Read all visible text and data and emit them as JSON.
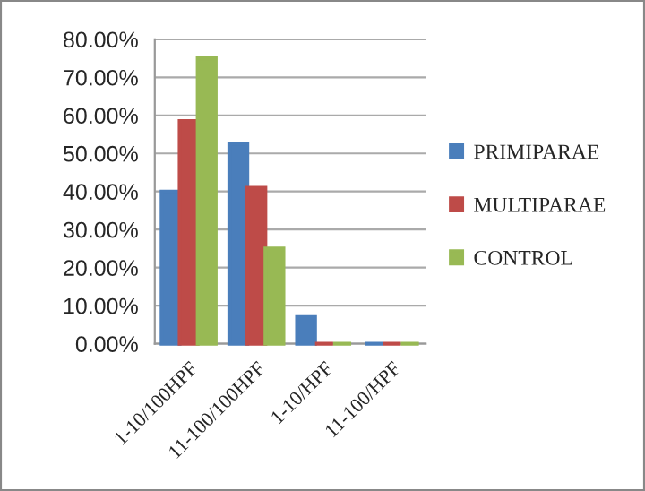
{
  "chart_data": {
    "type": "bar",
    "categories": [
      "1-10/100HPF",
      "11-100/100HPF",
      "1-10/HPF",
      "11-100/HPF"
    ],
    "series": [
      {
        "name": "PRIMIPARAE",
        "color": "#4a7ebb",
        "values": [
          40,
          52.5,
          7,
          0
        ]
      },
      {
        "name": "MULTIPARAE",
        "color": "#be4b48",
        "values": [
          58.5,
          41,
          0,
          0
        ]
      },
      {
        "name": "CONTROL",
        "color": "#98b954",
        "values": [
          75,
          25,
          0,
          0
        ]
      }
    ],
    "ylim": [
      0,
      80
    ],
    "yticks": [
      {
        "value": 0,
        "label": "0.00%"
      },
      {
        "value": 10,
        "label": "10.00%"
      },
      {
        "value": 20,
        "label": "20.00%"
      },
      {
        "value": 30,
        "label": "30.00%"
      },
      {
        "value": 40,
        "label": "40.00%"
      },
      {
        "value": 50,
        "label": "50.00%"
      },
      {
        "value": 60,
        "label": "60.00%"
      },
      {
        "value": 70,
        "label": "70.00%"
      },
      {
        "value": 80,
        "label": "80.00%"
      }
    ],
    "grid": "y",
    "legend": "right"
  }
}
